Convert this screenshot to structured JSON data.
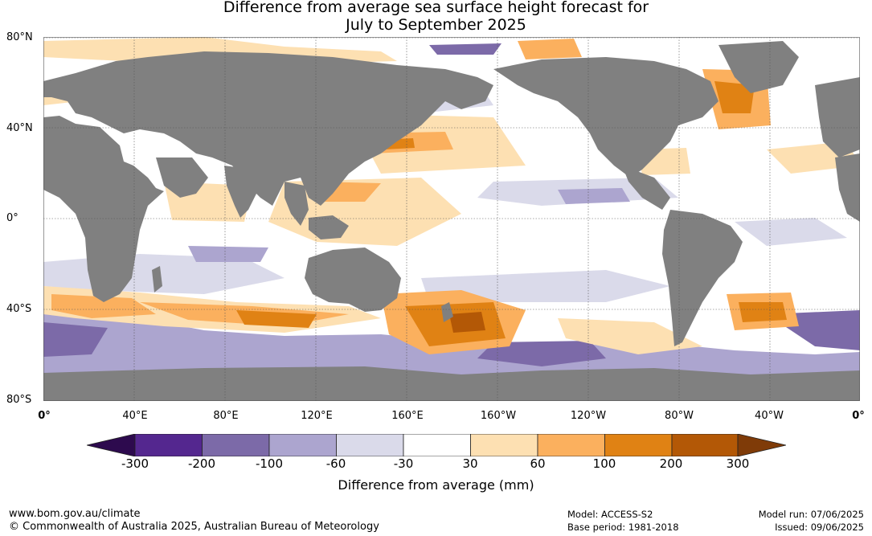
{
  "title": {
    "line1": "Difference from average sea surface height forecast for",
    "line2": "July to September 2025"
  },
  "map": {
    "lat_labels": [
      "80°N",
      "40°N",
      "0°",
      "40°S",
      "80°S"
    ],
    "lon_labels": [
      "0°",
      "40°E",
      "80°E",
      "120°E",
      "160°E",
      "160°W",
      "120°W",
      "80°W",
      "40°W",
      "0°"
    ],
    "colors": {
      "land": "#808080",
      "ocean_neutral": "#ffffff",
      "grid": "#555555"
    }
  },
  "legend": {
    "title": "Difference from average (mm)",
    "ticks": [
      "-300",
      "-200",
      "-100",
      "-60",
      "-30",
      "30",
      "60",
      "100",
      "200",
      "300"
    ],
    "colors": [
      "#2d0a4e",
      "#54278f",
      "#7c6aa8",
      "#aca5cf",
      "#dadaea",
      "#ffffff",
      "#fde0b2",
      "#fbb05e",
      "#e08214",
      "#b35806",
      "#7f3b08"
    ]
  },
  "footer": {
    "website": "www.bom.gov.au/climate",
    "copyright": "© Commonwealth of Australia 2025, Australian Bureau of Meteorology",
    "model": "Model: ACCESS-S2",
    "base_period": "Base period: 1981-2018",
    "model_run": "Model run: 07/06/2025",
    "issued": "Issued: 09/06/2025"
  }
}
